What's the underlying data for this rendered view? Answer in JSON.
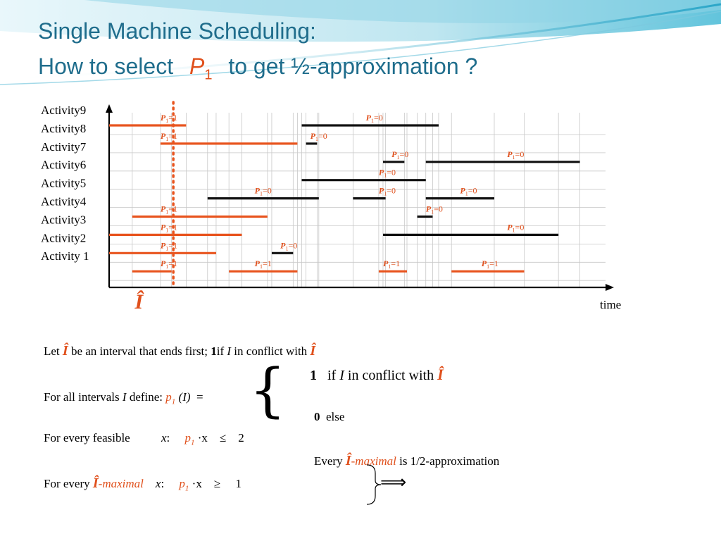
{
  "title": {
    "line1": "Single Machine Scheduling:",
    "line2_pre": "How to select",
    "line2_var": "P",
    "line2_sub": "1",
    "line2_post": "to get ½-approximation ?"
  },
  "chart_data": {
    "type": "gantt",
    "xlabel": "time",
    "marker_label": "Î",
    "categories": [
      "Activity9",
      "Activity8",
      "Activity7",
      "Activity6",
      "Activity5",
      "Activity4",
      "Activity3",
      "Activity2",
      "Activity 1"
    ],
    "label_var": "P",
    "label_sub": "1",
    "colors": {
      "selected": "#e8541e",
      "other": "#111111",
      "grid": "#c8c8c8"
    },
    "intervals": [
      {
        "row": 0,
        "start": 0,
        "end": 9.0,
        "p": 1
      },
      {
        "row": 0,
        "start": 22.5,
        "end": 38.5,
        "p": 0
      },
      {
        "row": 1,
        "start": 6.0,
        "end": 22.0,
        "p": 1
      },
      {
        "row": 1,
        "start": 23.0,
        "end": 24.3,
        "p": 0
      },
      {
        "row": 2,
        "start": 32.0,
        "end": 34.5,
        "p": 0
      },
      {
        "row": 2,
        "start": 37.0,
        "end": 55.0,
        "p": 0
      },
      {
        "row": 3,
        "start": 22.5,
        "end": 37.0,
        "p": 0
      },
      {
        "row": 4,
        "start": 11.5,
        "end": 24.5,
        "p": 0
      },
      {
        "row": 4,
        "start": 28.5,
        "end": 32.3,
        "p": 0
      },
      {
        "row": 4,
        "start": 37.0,
        "end": 45.0,
        "p": 0
      },
      {
        "row": 5,
        "start": 2.7,
        "end": 18.5,
        "p": 1
      },
      {
        "row": 5,
        "start": 36.0,
        "end": 37.8,
        "p": 0
      },
      {
        "row": 6,
        "start": 0,
        "end": 15.5,
        "p": 1
      },
      {
        "row": 6,
        "start": 32.0,
        "end": 52.5,
        "p": 0
      },
      {
        "row": 7,
        "start": 0,
        "end": 12.5,
        "p": 1
      },
      {
        "row": 7,
        "start": 19.0,
        "end": 21.5,
        "p": 0
      },
      {
        "row": 8,
        "start": 2.7,
        "end": 7.3,
        "p": 1
      },
      {
        "row": 8,
        "start": 14.0,
        "end": 22.0,
        "p": 1
      },
      {
        "row": 8,
        "start": 31.5,
        "end": 34.8,
        "p": 1
      },
      {
        "row": 8,
        "start": 40.0,
        "end": 48.5,
        "p": 1
      }
    ],
    "interval_labels": [
      {
        "row": 0,
        "at": 6.0,
        "text": "=1"
      },
      {
        "row": 0,
        "at": 30.0,
        "text": "=0"
      },
      {
        "row": 1,
        "at": 6.0,
        "text": "=1"
      },
      {
        "row": 1,
        "at": 23.5,
        "text": "=0"
      },
      {
        "row": 2,
        "at": 33.0,
        "text": "=0"
      },
      {
        "row": 2,
        "at": 46.5,
        "text": "=0"
      },
      {
        "row": 3,
        "at": 31.5,
        "text": "=0"
      },
      {
        "row": 4,
        "at": 17.0,
        "text": "=0"
      },
      {
        "row": 4,
        "at": 31.5,
        "text": "=0"
      },
      {
        "row": 4,
        "at": 41.0,
        "text": "=0"
      },
      {
        "row": 5,
        "at": 6.0,
        "text": "=1"
      },
      {
        "row": 5,
        "at": 37.0,
        "text": "=0"
      },
      {
        "row": 6,
        "at": 6.0,
        "text": "=1"
      },
      {
        "row": 6,
        "at": 46.5,
        "text": "=0"
      },
      {
        "row": 7,
        "at": 6.0,
        "text": "=1"
      },
      {
        "row": 7,
        "at": 20.0,
        "text": "=0"
      },
      {
        "row": 8,
        "at": 6.0,
        "text": "=1"
      },
      {
        "row": 8,
        "at": 17.0,
        "text": "=1"
      },
      {
        "row": 8,
        "at": 32.0,
        "text": "=1"
      },
      {
        "row": 8,
        "at": 43.5,
        "text": "=1"
      }
    ],
    "marker_at": 7.5,
    "xlim": [
      0,
      58
    ]
  },
  "body": {
    "let": {
      "pre": "Let",
      "ihat": "Î",
      "mid": "be an interval  that ends first;",
      "one": "1",
      "if": "if",
      "I": "I",
      "post": "in conflict with",
      "ihat2": "Î"
    },
    "case1": {
      "one": "1",
      "if": "if",
      "I": "I",
      "post": "in conflict with",
      "ihat": "Î"
    },
    "define": {
      "pre": "For all intervals",
      "I": "I",
      "mid": "define:",
      "p": "p",
      "sub": "1",
      "arg": "(I)",
      "eq": "="
    },
    "case0": {
      "zero": "0",
      "else": "else"
    },
    "feasible": {
      "pre": "For every feasible",
      "x": "x",
      "colon": ":",
      "p": "p",
      "sub": "1",
      "dotx": "·x",
      "rel": "≤",
      "val": "2"
    },
    "every": {
      "pre": "Every",
      "ihat": "Î",
      "maximal": "-maximal",
      "post": "is 1/2-approximation"
    },
    "maximal": {
      "pre": "For every",
      "ihat": "Î",
      "maximal": "-maximal",
      "x": "x",
      "colon": ":",
      "p": "p",
      "sub": "1",
      "dotx": "·x",
      "rel": "≥",
      "val": "1"
    },
    "implies": "⟹"
  }
}
